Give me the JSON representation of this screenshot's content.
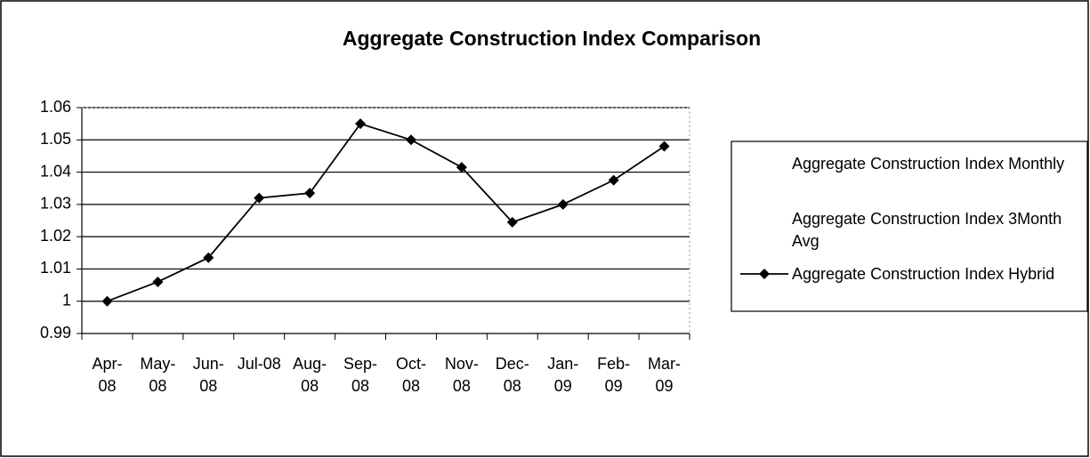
{
  "chart_data": {
    "type": "line",
    "title": "Aggregate Construction Index Comparison",
    "categories": [
      "Apr-08",
      "May-08",
      "Jun-08",
      "Jul-08",
      "Aug-08",
      "Sep-08",
      "Oct-08",
      "Nov-08",
      "Dec-08",
      "Jan-09",
      "Feb-09",
      "Mar-09"
    ],
    "series": [
      {
        "name": "Aggregate Construction Index Monthly",
        "color": "#ffffff",
        "values": [
          null,
          null,
          null,
          null,
          null,
          null,
          null,
          null,
          null,
          null,
          null,
          null
        ]
      },
      {
        "name": "Aggregate Construction Index 3Month Avg",
        "color": "#ffffff",
        "values": [
          null,
          null,
          null,
          null,
          null,
          null,
          null,
          null,
          null,
          null,
          null,
          null
        ]
      },
      {
        "name": "Aggregate Construction Index Hybrid",
        "color": "#000000",
        "values": [
          1.0,
          1.006,
          1.0135,
          1.032,
          1.0335,
          1.055,
          1.05,
          1.0415,
          1.0245,
          1.03,
          1.0375,
          1.048
        ]
      }
    ],
    "ylim": [
      0.99,
      1.06
    ],
    "yticks": [
      0.99,
      1,
      1.01,
      1.02,
      1.03,
      1.04,
      1.05,
      1.06
    ],
    "grid": true,
    "legend": "right"
  }
}
